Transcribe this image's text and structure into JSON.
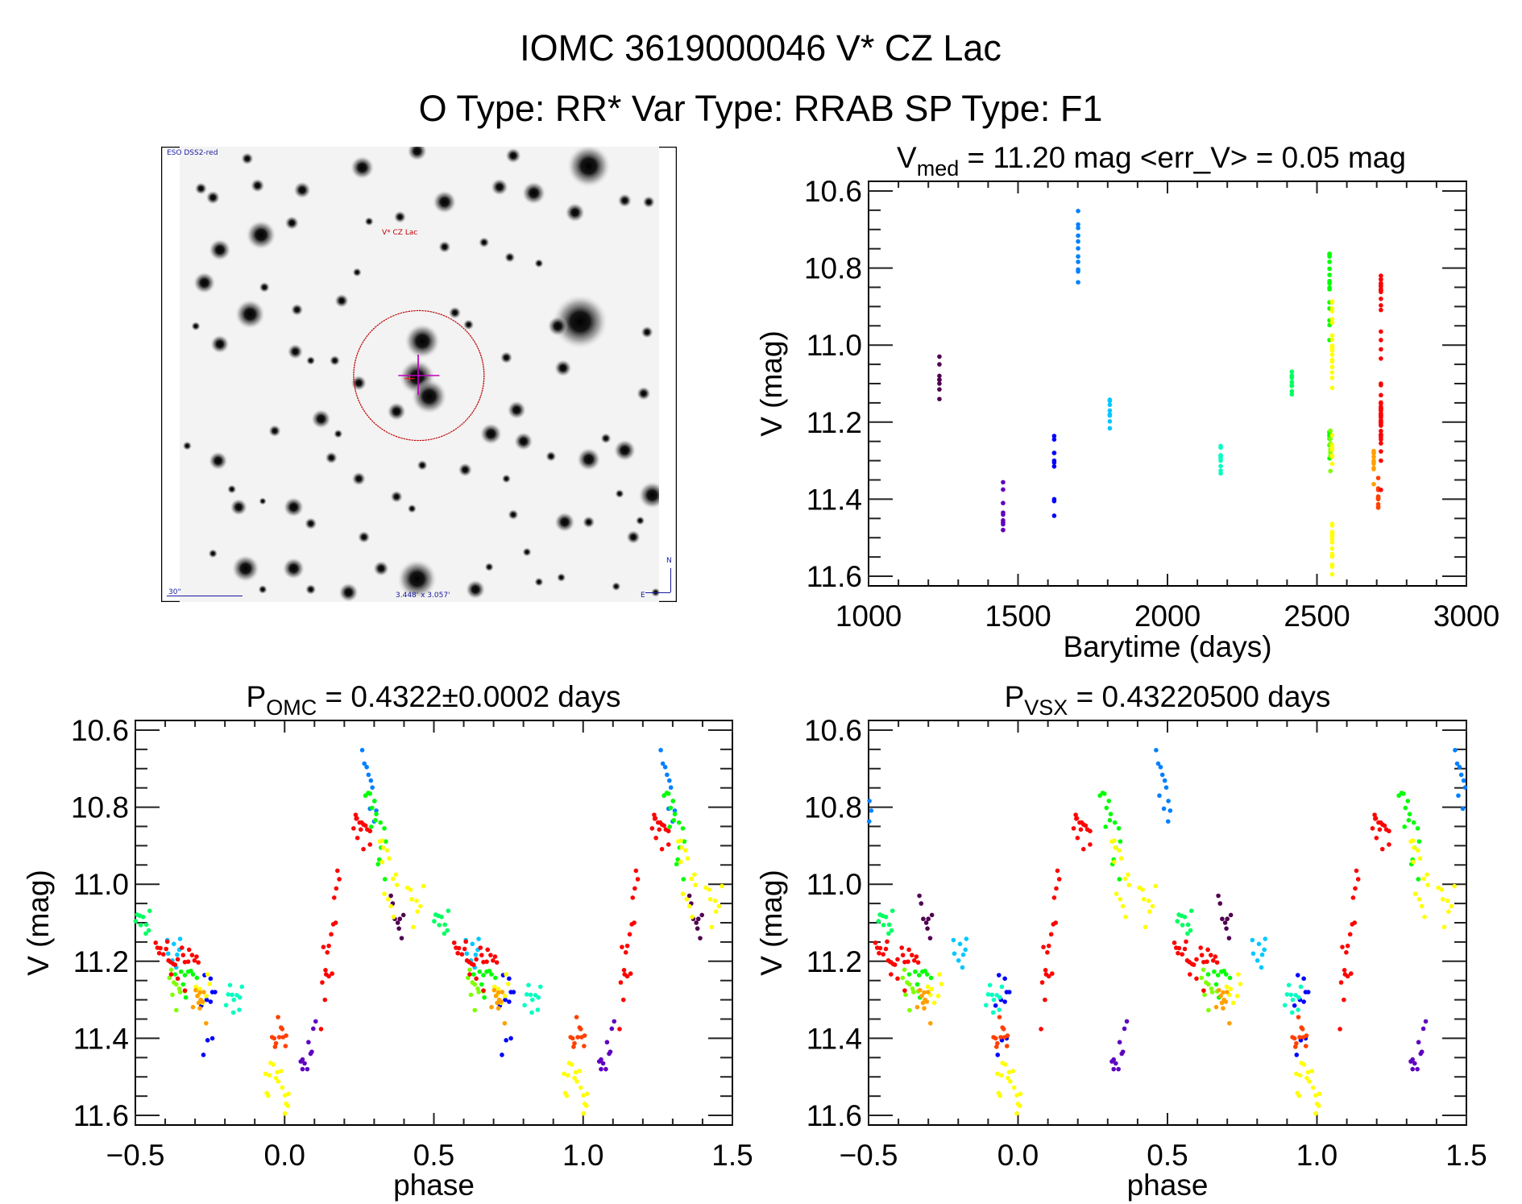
{
  "header": {
    "title_line1": "IOMC 3619000046    V* CZ Lac",
    "title_line2": "O Type: RR*   Var Type: RRAB   SP Type: F1"
  },
  "finder_image": {
    "survey_label": "ESO DSS2-red",
    "target_label": "V* CZ Lac",
    "scale_label": "30\"",
    "fov_label": "3.448' x 3.057'",
    "north_label": "N",
    "east_label": "E"
  },
  "colors": {
    "axis": "#000000",
    "target_circle": "#c00000",
    "crosshair": "#c000c0",
    "label_blue": "#1a1aa0"
  },
  "chart_data": [
    {
      "type": "scatter",
      "id": "lightcurve",
      "title_main": "V",
      "title_sub": "med",
      "title_rest": " = 11.20 mag <err_V> = 0.05 mag",
      "xlabel": "Barytime (days)",
      "ylabel": "V (mag)",
      "x_field": "t",
      "xlim": [
        1000,
        3000
      ],
      "ylim": [
        11.625,
        10.575
      ],
      "xticks": [
        1000,
        1500,
        2000,
        2500,
        3000
      ],
      "xtick_labels": [
        "1000",
        "1500",
        "2000",
        "2500",
        "3000"
      ],
      "xminor": 100,
      "yticks": [
        10.6,
        10.8,
        11.0,
        11.2,
        11.4,
        11.6
      ],
      "ytick_labels": [
        "10.6",
        "10.8",
        "11.0",
        "11.2",
        "11.4",
        "11.6"
      ],
      "yminor": 0.05
    },
    {
      "type": "scatter",
      "id": "phase-omc",
      "title_main": "P",
      "title_sub": "OMC",
      "title_rest": " = 0.4322±0.0002 days",
      "xlabel": "phase",
      "ylabel": "V (mag)",
      "x_field": "phase_omc",
      "xlim": [
        -0.5,
        1.5
      ],
      "ylim": [
        11.625,
        10.575
      ],
      "xticks": [
        -0.5,
        0.0,
        0.5,
        1.0,
        1.5
      ],
      "xtick_labels": [
        "−0.5",
        "0.0",
        "0.5",
        "1.0",
        "1.5"
      ],
      "xminor": 0.1,
      "yticks": [
        10.6,
        10.8,
        11.0,
        11.2,
        11.4,
        11.6
      ],
      "ytick_labels": [
        "10.6",
        "10.8",
        "11.0",
        "11.2",
        "11.4",
        "11.6"
      ],
      "yminor": 0.05
    },
    {
      "type": "scatter",
      "id": "phase-vsx",
      "title_main": "P",
      "title_sub": "VSX",
      "title_rest": " = 0.43220500 days",
      "xlabel": "phase",
      "ylabel": "V (mag)",
      "x_field": "phase_vsx",
      "xlim": [
        -0.5,
        1.5
      ],
      "ylim": [
        11.625,
        10.575
      ],
      "xticks": [
        -0.5,
        0.0,
        0.5,
        1.0,
        1.5
      ],
      "xtick_labels": [
        "−0.5",
        "0.0",
        "0.5",
        "1.0",
        "1.5"
      ],
      "xminor": 0.1,
      "yticks": [
        10.6,
        10.8,
        11.0,
        11.2,
        11.4,
        11.6
      ],
      "ytick_labels": [
        "10.6",
        "10.8",
        "11.0",
        "11.2",
        "11.4",
        "11.6"
      ],
      "yminor": 0.05
    }
  ],
  "observations": [
    {
      "color": "#500050",
      "t": 1237,
      "vsx_phase_shift": 0.314,
      "points": [
        [
          0.356,
          11.03
        ],
        [
          0.362,
          11.05
        ],
        [
          0.369,
          11.09
        ],
        [
          0.379,
          11.1
        ],
        [
          0.386,
          11.09
        ],
        [
          0.398,
          11.08
        ],
        [
          0.383,
          11.115
        ],
        [
          0.392,
          11.14
        ]
      ]
    },
    {
      "color": "#6000c0",
      "t": 1450,
      "vsx_phase_shift": 0.26,
      "points": [
        [
          0.054,
          11.46
        ],
        [
          0.06,
          11.455
        ],
        [
          0.067,
          11.465
        ],
        [
          0.06,
          11.48
        ],
        [
          0.076,
          11.48
        ],
        [
          0.08,
          11.41
        ],
        [
          0.087,
          11.44
        ],
        [
          0.091,
          11.435
        ],
        [
          0.096,
          11.375
        ],
        [
          0.104,
          11.356
        ]
      ]
    },
    {
      "color": "#0000ff",
      "t": 1621,
      "vsx_phase_shift": 0.204,
      "points": [
        [
          -0.268,
          11.236
        ],
        [
          -0.248,
          11.245
        ],
        [
          -0.242,
          11.28
        ],
        [
          -0.233,
          11.28
        ],
        [
          -0.261,
          11.3
        ],
        [
          -0.248,
          11.305
        ],
        [
          -0.279,
          11.315
        ],
        [
          -0.258,
          11.405
        ],
        [
          -0.242,
          11.4
        ],
        [
          -0.272,
          11.443
        ]
      ]
    },
    {
      "color": "#0080ff",
      "t": 1701,
      "vsx_phase_shift": 0.202,
      "points": [
        [
          0.26,
          10.652
        ],
        [
          0.267,
          10.687
        ],
        [
          0.275,
          10.696
        ],
        [
          0.281,
          10.716
        ],
        [
          0.289,
          10.731
        ],
        [
          0.294,
          10.749
        ],
        [
          0.271,
          10.77
        ],
        [
          0.301,
          10.784
        ],
        [
          0.286,
          10.804
        ],
        [
          0.307,
          10.809
        ],
        [
          0.3,
          10.837
        ]
      ]
    },
    {
      "color": "#00c8ff",
      "t": 1807,
      "vsx_phase_shift": 0.177,
      "points": [
        [
          -0.393,
          11.145
        ],
        [
          -0.371,
          11.155
        ],
        [
          -0.35,
          11.142
        ],
        [
          -0.353,
          11.17
        ],
        [
          -0.39,
          11.18
        ],
        [
          -0.36,
          11.183
        ],
        [
          -0.376,
          11.198
        ],
        [
          -0.363,
          11.216
        ]
      ]
    },
    {
      "color": "#00ffc0",
      "t": 2178,
      "vsx_phase_shift": 0.089,
      "points": [
        [
          -0.196,
          11.314
        ],
        [
          -0.183,
          11.262
        ],
        [
          -0.176,
          11.287
        ],
        [
          -0.17,
          11.3
        ],
        [
          -0.189,
          11.286
        ],
        [
          -0.16,
          11.288
        ],
        [
          -0.15,
          11.294
        ],
        [
          -0.143,
          11.266
        ],
        [
          -0.172,
          11.333
        ],
        [
          -0.152,
          11.326
        ]
      ]
    },
    {
      "color": "#00ff60",
      "t": 2416,
      "vsx_phase_shift": 0.032,
      "points": [
        [
          -0.494,
          11.079
        ],
        [
          -0.485,
          11.082
        ],
        [
          -0.474,
          11.085
        ],
        [
          -0.452,
          11.069
        ],
        [
          -0.482,
          11.106
        ],
        [
          -0.463,
          11.105
        ],
        [
          -0.455,
          11.12
        ],
        [
          -0.465,
          11.128
        ],
        [
          -0.499,
          11.096
        ]
      ]
    },
    {
      "color": "#00ff00",
      "t": 2542,
      "vsx_phase_shift": 0.003,
      "points": [
        [
          0.28,
          10.763
        ],
        [
          0.286,
          10.765
        ],
        [
          0.271,
          10.77
        ],
        [
          0.301,
          10.784
        ],
        [
          0.293,
          10.802
        ],
        [
          0.307,
          10.818
        ],
        [
          0.304,
          10.834
        ],
        [
          0.321,
          10.84
        ],
        [
          0.29,
          10.851
        ],
        [
          0.334,
          10.855
        ],
        [
          0.339,
          10.889
        ],
        [
          0.323,
          10.905
        ],
        [
          0.317,
          10.936
        ],
        [
          0.313,
          10.948
        ],
        [
          0.336,
          10.987
        ],
        [
          -0.347,
          11.227
        ],
        [
          -0.323,
          11.227
        ],
        [
          -0.314,
          11.225
        ],
        [
          -0.307,
          11.234
        ],
        [
          -0.334,
          11.236
        ],
        [
          -0.367,
          11.234
        ],
        [
          -0.294,
          11.243
        ],
        [
          -0.34,
          11.26
        ],
        [
          -0.331,
          11.294
        ]
      ]
    },
    {
      "color": "#80ff00",
      "t": 2545,
      "vsx_phase_shift": 0.0,
      "points": [
        [
          -0.38,
          11.222
        ],
        [
          -0.386,
          11.243
        ],
        [
          -0.371,
          11.255
        ],
        [
          -0.363,
          11.26
        ],
        [
          -0.376,
          11.287
        ],
        [
          -0.363,
          11.327
        ],
        [
          -0.353,
          11.271
        ],
        [
          -0.334,
          11.278
        ],
        [
          -0.35,
          11.28
        ]
      ]
    },
    {
      "color": "#ffff00",
      "t": 2551,
      "vsx_phase_shift": -0.005,
      "points": [
        [
          0.319,
          10.889
        ],
        [
          0.327,
          10.887
        ],
        [
          0.33,
          10.905
        ],
        [
          0.343,
          10.912
        ],
        [
          0.327,
          10.942
        ],
        [
          0.35,
          10.933
        ],
        [
          0.363,
          10.986
        ],
        [
          0.373,
          10.975
        ],
        [
          0.376,
          11.002
        ],
        [
          0.334,
          11.025
        ],
        [
          0.347,
          11.039
        ],
        [
          0.356,
          11.057
        ],
        [
          0.411,
          11.009
        ],
        [
          0.422,
          11.014
        ],
        [
          0.426,
          11.039
        ],
        [
          0.442,
          11.043
        ],
        [
          0.455,
          11.057
        ],
        [
          0.445,
          11.071
        ],
        [
          0.465,
          11.005
        ],
        [
          0.431,
          11.111
        ],
        [
          0.365,
          11.085
        ],
        [
          -0.258,
          11.234
        ],
        [
          -0.251,
          11.259
        ],
        [
          -0.297,
          11.266
        ],
        [
          -0.288,
          11.287
        ],
        [
          -0.275,
          11.308
        ],
        [
          -0.284,
          11.272
        ],
        [
          -0.262,
          11.29
        ],
        [
          -0.064,
          11.492
        ],
        [
          -0.051,
          11.496
        ],
        [
          -0.047,
          11.464
        ],
        [
          -0.038,
          11.468
        ],
        [
          -0.029,
          11.503
        ],
        [
          -0.021,
          11.512
        ],
        [
          -0.012,
          11.485
        ],
        [
          -0.025,
          11.488
        ],
        [
          -0.008,
          11.528
        ],
        [
          -0.06,
          11.542
        ],
        [
          -0.055,
          11.549
        ],
        [
          0.001,
          11.548
        ],
        [
          0.013,
          11.544
        ],
        [
          0.005,
          11.57
        ],
        [
          0.011,
          11.575
        ],
        [
          0.001,
          11.595
        ]
      ]
    },
    {
      "color": "#ffa000",
      "t": 2690,
      "vsx_phase_shift": -0.03,
      "points": [
        [
          -0.298,
          11.275
        ],
        [
          -0.284,
          11.281
        ],
        [
          -0.271,
          11.28
        ],
        [
          -0.292,
          11.29
        ],
        [
          -0.281,
          11.3
        ],
        [
          -0.275,
          11.305
        ],
        [
          -0.288,
          11.308
        ],
        [
          -0.307,
          11.319
        ],
        [
          -0.284,
          11.322
        ],
        [
          -0.263,
          11.361
        ]
      ]
    },
    {
      "color": "#ff4000",
      "t": 2705,
      "vsx_phase_shift": -0.04,
      "points": [
        [
          -0.022,
          11.345
        ],
        [
          -0.012,
          11.372
        ],
        [
          -0.008,
          11.376
        ],
        [
          -0.042,
          11.397
        ],
        [
          -0.035,
          11.4
        ],
        [
          -0.029,
          11.413
        ],
        [
          -0.032,
          11.422
        ],
        [
          -0.018,
          11.397
        ],
        [
          -0.005,
          11.397
        ],
        [
          0.005,
          11.393
        ],
        [
          0.003,
          11.42
        ]
      ]
    },
    {
      "color": "#ff0000",
      "t": 2714,
      "vsx_phase_shift": -0.045,
      "points": [
        [
          -0.432,
          11.152
        ],
        [
          -0.426,
          11.165
        ],
        [
          -0.416,
          11.166
        ],
        [
          -0.42,
          11.179
        ],
        [
          -0.406,
          11.182
        ],
        [
          -0.397,
          11.168
        ],
        [
          -0.393,
          11.149
        ],
        [
          -0.389,
          11.198
        ],
        [
          -0.382,
          11.202
        ],
        [
          -0.373,
          11.207
        ],
        [
          -0.367,
          11.209
        ],
        [
          -0.358,
          11.195
        ],
        [
          -0.344,
          11.165
        ],
        [
          -0.34,
          11.184
        ],
        [
          -0.334,
          11.202
        ],
        [
          -0.323,
          11.201
        ],
        [
          -0.32,
          11.17
        ],
        [
          -0.31,
          11.184
        ],
        [
          -0.302,
          11.198
        ],
        [
          -0.295,
          11.188
        ],
        [
          -0.289,
          11.203
        ],
        [
          -0.38,
          11.234
        ],
        [
          -0.358,
          11.245
        ],
        [
          -0.334,
          11.276
        ],
        [
          0.122,
          11.376
        ],
        [
          0.135,
          11.3
        ],
        [
          0.126,
          11.255
        ],
        [
          0.139,
          11.234
        ],
        [
          0.148,
          11.239
        ],
        [
          0.159,
          11.232
        ],
        [
          0.137,
          11.223
        ],
        [
          0.143,
          11.177
        ],
        [
          0.13,
          11.163
        ],
        [
          0.148,
          11.16
        ],
        [
          0.156,
          11.13
        ],
        [
          0.163,
          11.104
        ],
        [
          0.171,
          11.1
        ],
        [
          0.166,
          11.035
        ],
        [
          0.173,
          11.011
        ],
        [
          0.183,
          10.987
        ],
        [
          0.177,
          10.965
        ],
        [
          0.238,
          10.82
        ],
        [
          0.231,
          10.855
        ],
        [
          0.242,
          10.829
        ],
        [
          0.251,
          10.84
        ],
        [
          0.258,
          10.84
        ],
        [
          0.264,
          10.845
        ],
        [
          0.271,
          10.848
        ],
        [
          0.277,
          10.858
        ],
        [
          0.255,
          10.858
        ],
        [
          0.286,
          10.862
        ],
        [
          0.244,
          10.88
        ],
        [
          0.264,
          10.909
        ],
        [
          0.286,
          10.897
        ],
        [
          0.24,
          10.83
        ]
      ]
    }
  ]
}
